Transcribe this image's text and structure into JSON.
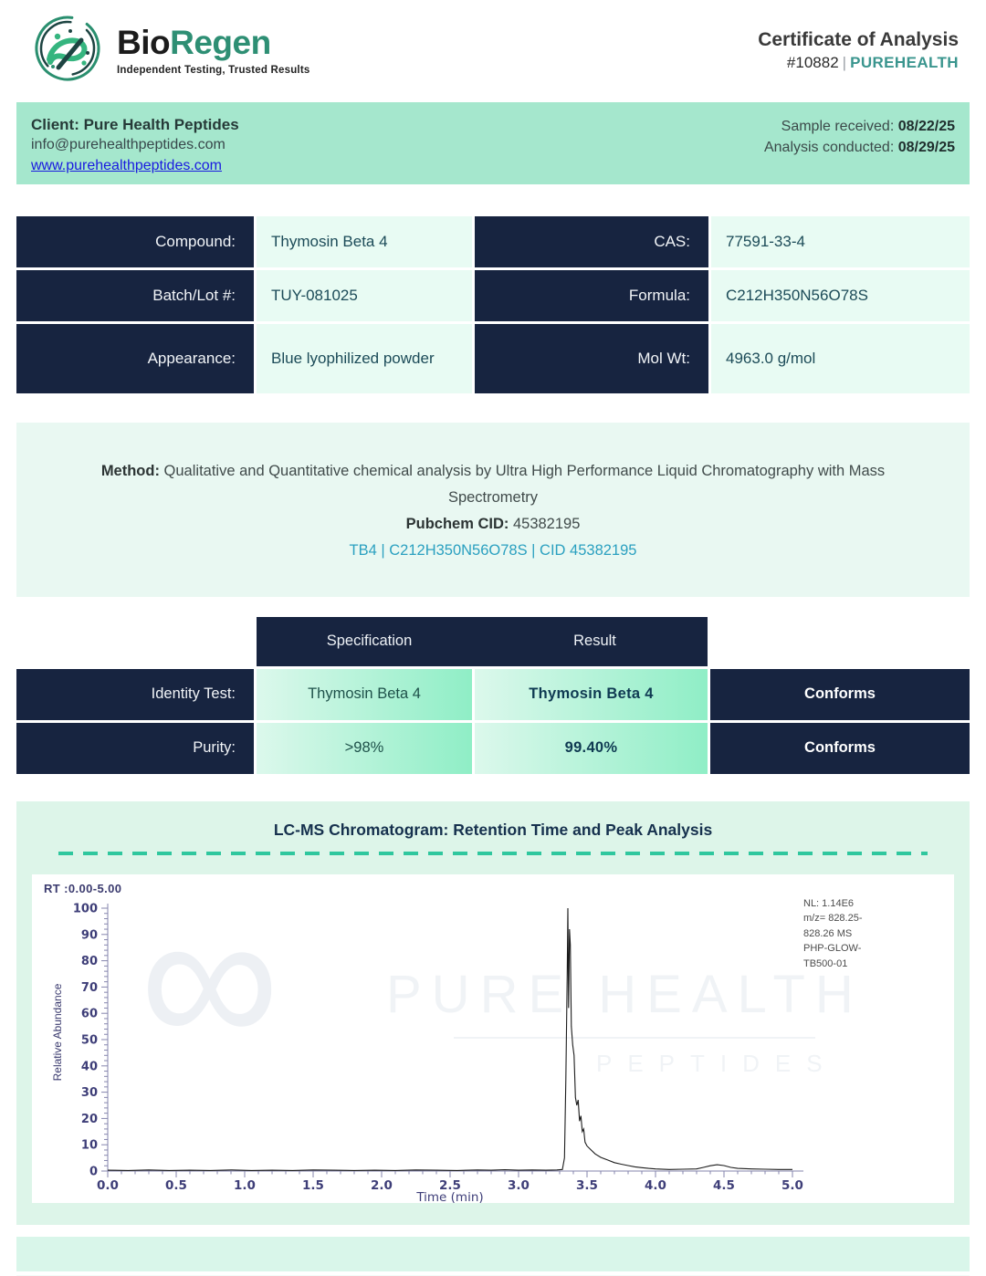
{
  "header": {
    "brand_bio": "Bio",
    "brand_regen": "Regen",
    "tagline": "Independent Testing, Trusted Results",
    "title": "Certificate of Analysis",
    "cert_number": "#10882",
    "divider": "|",
    "brand_name": "PUREHEALTH"
  },
  "client_bar": {
    "client": "Client: Pure Health Peptides",
    "email": "info@purehealthpeptides.com",
    "website": "www.purehealthpeptides.com",
    "received_label": "Sample received: ",
    "received_date": "08/22/25",
    "conducted_label": "Analysis conducted: ",
    "conducted_date": "08/29/25"
  },
  "compound_table": {
    "rows": [
      {
        "label_left": "Compound:",
        "value_left": "Thymosin Beta 4",
        "label_right": "CAS:",
        "value_right": "77591-33-4"
      },
      {
        "label_left": "Batch/Lot #:",
        "value_left": "TUY-081025",
        "label_right": "Formula:",
        "value_right": "C212H350N56O78S"
      },
      {
        "label_left": "Appearance:",
        "value_left": "Blue lyophilized powder",
        "label_right": "Mol Wt:",
        "value_right": "4963.0 g/mol"
      }
    ]
  },
  "method": {
    "label": "Method: ",
    "description": "Qualitative and Quantitative chemical analysis by Ultra High Performance Liquid Chromatography with Mass Spectrometry",
    "pubchem_label": "Pubchem CID: ",
    "pubchem_value": "45382195",
    "link_text": "TB4 | C212H350N56O78S | CID 45382195"
  },
  "results_table": {
    "col_specification": "Specification",
    "col_result": "Result",
    "rows": [
      {
        "label": "Identity Test:",
        "specification": "Thymosin Beta 4",
        "result": "Thymosin Beta 4",
        "status": "Conforms"
      },
      {
        "label": "Purity:",
        "specification": ">98%",
        "result": "99.40%",
        "status": "Conforms"
      }
    ]
  },
  "chromatogram": {
    "section_title": "LC-MS Chromatogram: Retention Time and Peak Analysis",
    "rt_range_label": "RT :0.00-5.00",
    "annotation_lines": [
      "NL: 1.14E6",
      "m/z= 828.25-",
      "828.26 MS",
      "PHP-GLOW-",
      "TB500-01"
    ],
    "watermark_symbol": "∞",
    "watermark_line1": "PURE HEALTH",
    "watermark_line2": "PEPTIDES"
  },
  "chart_data": {
    "type": "line",
    "title": "LC-MS Chromatogram: Retention Time and Peak Analysis",
    "xlabel": "Time (min)",
    "ylabel": "Relative Abundance",
    "xlim": [
      0.0,
      5.0
    ],
    "ylim": [
      0,
      100
    ],
    "x_tick_step": 0.5,
    "x_minor_step": 0.1,
    "y_tick_step": 10,
    "y_minor_step": 2,
    "grid": false,
    "legend": "none",
    "peak": {
      "retention_time_min": 3.37,
      "relative_abundance_pct": 100
    },
    "points": [
      [
        0.0,
        0.3
      ],
      [
        0.15,
        0.2
      ],
      [
        0.3,
        0.4
      ],
      [
        0.45,
        0.2
      ],
      [
        0.6,
        0.3
      ],
      [
        0.75,
        0.2
      ],
      [
        0.9,
        0.4
      ],
      [
        1.05,
        0.2
      ],
      [
        1.2,
        0.3
      ],
      [
        1.35,
        0.2
      ],
      [
        1.5,
        0.4
      ],
      [
        1.65,
        0.3
      ],
      [
        1.8,
        0.2
      ],
      [
        1.95,
        0.3
      ],
      [
        2.1,
        0.2
      ],
      [
        2.25,
        0.4
      ],
      [
        2.4,
        0.3
      ],
      [
        2.55,
        0.2
      ],
      [
        2.7,
        0.4
      ],
      [
        2.8,
        0.3
      ],
      [
        2.9,
        0.5
      ],
      [
        3.0,
        0.3
      ],
      [
        3.1,
        0.4
      ],
      [
        3.2,
        0.3
      ],
      [
        3.28,
        0.4
      ],
      [
        3.32,
        0.6
      ],
      [
        3.335,
        5
      ],
      [
        3.345,
        35
      ],
      [
        3.355,
        75
      ],
      [
        3.36,
        100
      ],
      [
        3.365,
        62
      ],
      [
        3.372,
        92
      ],
      [
        3.378,
        86
      ],
      [
        3.385,
        55
      ],
      [
        3.395,
        48
      ],
      [
        3.405,
        44
      ],
      [
        3.415,
        28
      ],
      [
        3.425,
        25
      ],
      [
        3.435,
        27
      ],
      [
        3.445,
        19
      ],
      [
        3.455,
        21
      ],
      [
        3.465,
        15
      ],
      [
        3.475,
        16
      ],
      [
        3.485,
        11
      ],
      [
        3.5,
        9.5
      ],
      [
        3.53,
        8
      ],
      [
        3.56,
        6.5
      ],
      [
        3.6,
        5.2
      ],
      [
        3.65,
        4.2
      ],
      [
        3.7,
        3.2
      ],
      [
        3.75,
        2.6
      ],
      [
        3.8,
        2.1
      ],
      [
        3.85,
        1.6
      ],
      [
        3.9,
        1.3
      ],
      [
        3.95,
        1.0
      ],
      [
        4.0,
        0.8
      ],
      [
        4.1,
        0.6
      ],
      [
        4.2,
        0.7
      ],
      [
        4.3,
        0.8
      ],
      [
        4.35,
        1.4
      ],
      [
        4.4,
        2.0
      ],
      [
        4.45,
        2.4
      ],
      [
        4.5,
        2.1
      ],
      [
        4.55,
        1.4
      ],
      [
        4.6,
        1.0
      ],
      [
        4.7,
        0.8
      ],
      [
        4.8,
        0.7
      ],
      [
        4.9,
        0.6
      ],
      [
        5.0,
        0.6
      ]
    ]
  },
  "colors": {
    "navy": "#172440",
    "mint_bar": "#a5e7cd",
    "mint_cell": "#e8fbf3",
    "method_bg": "#e9f8f2",
    "section_bg": "#ddf5e9",
    "gradient_start": "#dcf8ec",
    "gradient_end": "#8feec6",
    "teal_brand": "#2e8f74",
    "teal_brandname": "#3a958e",
    "link_blue": "#1a1ae0",
    "link_teal": "#2aa0c0",
    "dash_teal": "#2fc79e",
    "axis_text": "#3e3e78",
    "trace_color": "#1c1c1c"
  }
}
